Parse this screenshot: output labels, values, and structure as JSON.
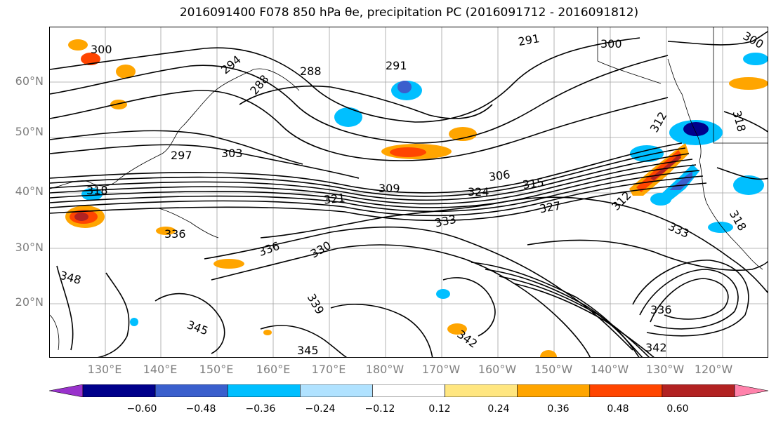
{
  "title": "2016091400 F078 850 hPa θe, precipitation PC (2016091712 - 2016091812)",
  "lat_labels": [
    "60°N",
    "50°N",
    "40°N",
    "30°N",
    "20°N"
  ],
  "lon_labels": [
    "130°E",
    "140°E",
    "150°E",
    "160°E",
    "170°E",
    "180°W",
    "170°W",
    "160°W",
    "150°W",
    "140°W",
    "130°W",
    "120°W"
  ],
  "contour_labels": [
    "300",
    "294",
    "288",
    "288",
    "291",
    "291",
    "300",
    "300",
    "297",
    "303",
    "306",
    "309",
    "315",
    "318",
    "321",
    "324",
    "327",
    "330",
    "333",
    "336",
    "336",
    "336",
    "339",
    "342",
    "342",
    "345",
    "345",
    "348",
    "318",
    "318",
    "312",
    "312",
    "333"
  ],
  "colorbar": {
    "ticks": [
      "−0.60",
      "−0.48",
      "−0.36",
      "−0.24",
      "−0.12",
      "0.12",
      "0.24",
      "0.36",
      "0.48",
      "0.60"
    ],
    "colors": [
      "#9932CC",
      "#00008B",
      "#3A5FCD",
      "#00BFFF",
      "#B0E2FF",
      "#FFFFFF",
      "#FFE680",
      "#FFA500",
      "#FF4500",
      "#B22222",
      "#FF82AB"
    ]
  },
  "colors": {
    "contour": "#000000",
    "grid": "#a0a0a0",
    "coast": "#000000",
    "axis_label": "#7f7f7f"
  }
}
